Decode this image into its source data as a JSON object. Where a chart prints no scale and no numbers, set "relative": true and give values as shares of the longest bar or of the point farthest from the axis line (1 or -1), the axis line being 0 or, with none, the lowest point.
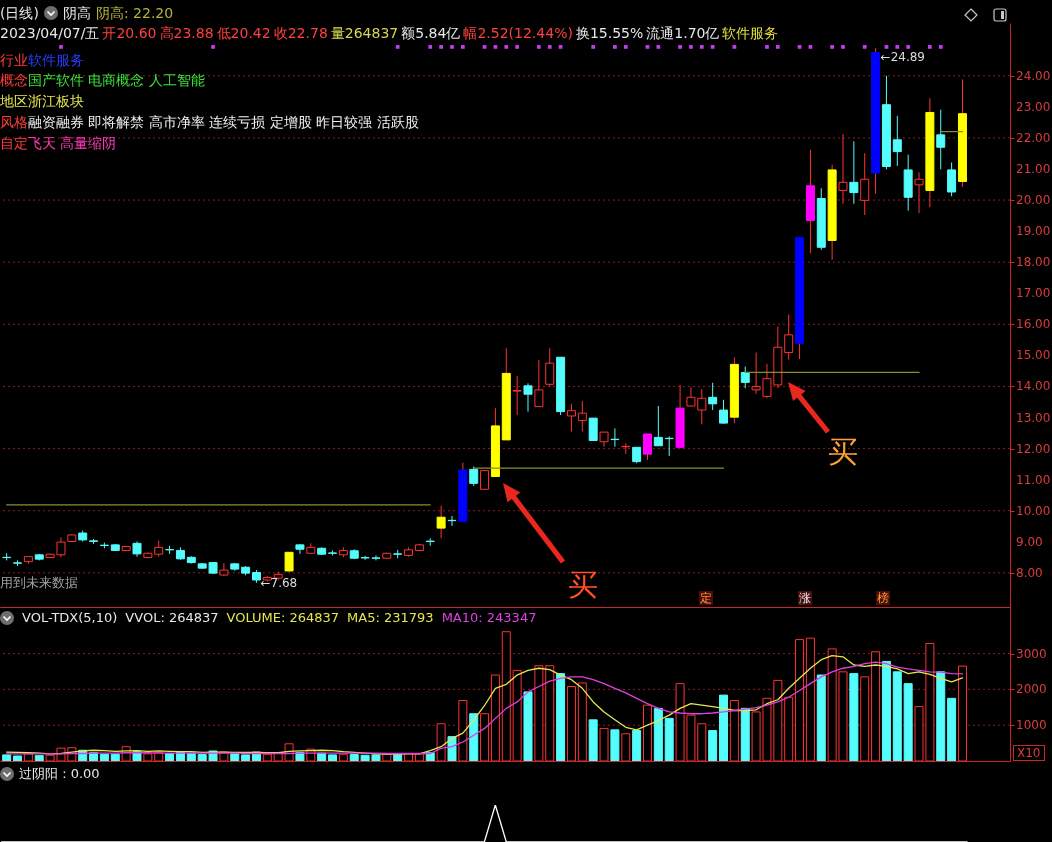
{
  "chart_data": [
    {
      "type": "candlestick",
      "title": "(日线)",
      "categories": [
        null,
        null,
        null,
        null,
        null,
        null,
        null,
        null,
        null,
        null,
        null,
        null,
        null,
        null,
        null,
        null,
        null,
        null,
        null,
        null,
        null,
        null,
        null,
        null,
        null,
        null,
        null,
        null,
        null,
        null,
        null,
        null,
        null,
        null,
        null,
        null,
        null,
        null,
        null,
        null,
        null,
        null,
        null,
        null,
        null,
        null,
        null,
        null,
        null,
        null,
        null,
        null,
        null,
        null,
        null,
        null,
        null,
        null,
        null,
        null,
        null,
        null,
        null,
        null,
        null,
        null,
        null,
        null,
        null,
        null,
        null,
        null,
        null,
        null,
        null,
        null,
        null,
        null,
        null,
        null,
        null,
        null,
        null,
        null,
        null,
        null,
        null,
        null,
        null
      ],
      "ohlc": [
        [
          8.5,
          8.63,
          8.4,
          8.49
        ],
        [
          8.32,
          8.4,
          8.22,
          8.31
        ],
        [
          8.36,
          8.52,
          8.29,
          8.52
        ],
        [
          8.58,
          8.61,
          8.4,
          8.44
        ],
        [
          8.49,
          8.62,
          8.47,
          8.6
        ],
        [
          8.58,
          9.14,
          8.5,
          8.99
        ],
        [
          9.01,
          9.24,
          9.0,
          9.22
        ],
        [
          9.28,
          9.36,
          9.01,
          9.06
        ],
        [
          9.03,
          9.09,
          8.93,
          9.01
        ],
        [
          8.89,
          8.97,
          8.79,
          8.88
        ],
        [
          8.9,
          8.93,
          8.7,
          8.72
        ],
        [
          8.72,
          8.87,
          8.7,
          8.85
        ],
        [
          8.95,
          9.01,
          8.52,
          8.61
        ],
        [
          8.49,
          8.65,
          8.47,
          8.63
        ],
        [
          8.6,
          9.04,
          8.52,
          8.82
        ],
        [
          8.75,
          8.87,
          8.61,
          8.74
        ],
        [
          8.72,
          8.82,
          8.42,
          8.45
        ],
        [
          8.5,
          8.53,
          8.3,
          8.33
        ],
        [
          8.29,
          8.31,
          8.13,
          8.15
        ],
        [
          8.33,
          8.35,
          7.96,
          7.99
        ],
        [
          7.93,
          8.31,
          7.9,
          8.09
        ],
        [
          8.29,
          8.31,
          8.07,
          8.12
        ],
        [
          8.18,
          8.22,
          7.92,
          7.99
        ],
        [
          8.01,
          8.09,
          7.68,
          7.77
        ],
        [
          7.77,
          7.9,
          7.72,
          7.85
        ],
        [
          7.83,
          8.04,
          7.77,
          7.95
        ],
        [
          8.06,
          8.66,
          8.04,
          8.66
        ],
        [
          8.9,
          8.92,
          8.61,
          8.76
        ],
        [
          8.63,
          8.95,
          8.62,
          8.82
        ],
        [
          8.79,
          8.82,
          8.57,
          8.6
        ],
        [
          8.64,
          8.72,
          8.56,
          8.63
        ],
        [
          8.58,
          8.82,
          8.5,
          8.72
        ],
        [
          8.71,
          8.76,
          8.44,
          8.47
        ],
        [
          8.49,
          8.55,
          8.42,
          8.48
        ],
        [
          8.48,
          8.56,
          8.4,
          8.47
        ],
        [
          8.47,
          8.65,
          8.45,
          8.63
        ],
        [
          8.61,
          8.74,
          8.47,
          8.6
        ],
        [
          8.56,
          8.82,
          8.52,
          8.74
        ],
        [
          8.72,
          8.93,
          8.7,
          8.9
        ],
        [
          9.02,
          9.11,
          8.87,
          9.01
        ],
        [
          9.44,
          10.16,
          9.11,
          9.79
        ],
        [
          9.69,
          9.83,
          9.51,
          9.68
        ],
        [
          9.65,
          11.55,
          9.65,
          11.31
        ],
        [
          11.33,
          11.42,
          10.8,
          10.88
        ],
        [
          10.69,
          11.3,
          10.69,
          11.29
        ],
        [
          11.1,
          13.3,
          11.1,
          12.73
        ],
        [
          12.28,
          15.23,
          12.28,
          14.42
        ],
        [
          13.85,
          14.34,
          13.08,
          13.87
        ],
        [
          14.02,
          14.1,
          13.19,
          13.75
        ],
        [
          13.35,
          14.85,
          13.35,
          13.89
        ],
        [
          14.07,
          15.23,
          13.99,
          14.75
        ],
        [
          14.94,
          14.94,
          13.08,
          13.19
        ],
        [
          13.05,
          13.44,
          12.55,
          13.22
        ],
        [
          12.9,
          13.53,
          12.55,
          13.14
        ],
        [
          12.98,
          12.98,
          12.26,
          12.26
        ],
        [
          12.22,
          12.53,
          12.06,
          12.53
        ],
        [
          12.3,
          12.65,
          12.06,
          12.29
        ],
        [
          12.06,
          12.17,
          11.83,
          12.07
        ],
        [
          12.04,
          12.04,
          11.53,
          11.58
        ],
        [
          11.82,
          12.47,
          11.63,
          12.47
        ],
        [
          12.36,
          13.37,
          12.09,
          12.09
        ],
        [
          12.33,
          12.39,
          11.76,
          12.32
        ],
        [
          12.04,
          14.05,
          12.04,
          13.3
        ],
        [
          13.37,
          13.97,
          13.37,
          13.65
        ],
        [
          13.24,
          13.91,
          12.78,
          13.62
        ],
        [
          13.65,
          14.12,
          13.24,
          13.44
        ],
        [
          13.24,
          13.57,
          12.8,
          12.82
        ],
        [
          13.01,
          14.94,
          12.82,
          14.71
        ],
        [
          14.45,
          14.64,
          13.94,
          14.13
        ],
        [
          13.89,
          15.09,
          13.76,
          14.0
        ],
        [
          13.68,
          14.73,
          13.62,
          14.25
        ],
        [
          14.05,
          15.93,
          13.94,
          15.26
        ],
        [
          15.09,
          16.31,
          14.86,
          15.66
        ],
        [
          15.39,
          18.79,
          14.88,
          18.79
        ],
        [
          19.34,
          21.62,
          18.29,
          20.46
        ],
        [
          20.05,
          20.38,
          18.4,
          18.48
        ],
        [
          18.7,
          21.14,
          18.08,
          20.97
        ],
        [
          20.31,
          22.13,
          19.88,
          20.57
        ],
        [
          20.57,
          21.89,
          19.88,
          20.24
        ],
        [
          19.99,
          21.51,
          19.52,
          20.67
        ],
        [
          20.87,
          24.89,
          20.2,
          24.75
        ],
        [
          23.07,
          24.0,
          20.99,
          21.08
        ],
        [
          21.94,
          22.71,
          21.1,
          21.56
        ],
        [
          20.97,
          21.46,
          19.66,
          20.09
        ],
        [
          20.49,
          20.89,
          19.58,
          20.67
        ],
        [
          20.31,
          23.28,
          19.77,
          22.82
        ],
        [
          22.1,
          22.91,
          20.99,
          21.7
        ],
        [
          20.97,
          21.21,
          20.12,
          20.26
        ],
        [
          20.6,
          23.88,
          20.42,
          22.78
        ]
      ],
      "colors": [
        "#54fcfc",
        "#54fcfc",
        "#ff3232",
        "#54fcfc",
        "#ff3232",
        "#ff3232",
        "#ff3232",
        "#54fcfc",
        "#54fcfc",
        "#54fcfc",
        "#54fcfc",
        "#ff3232",
        "#54fcfc",
        "#ff3232",
        "#ff3232",
        "#54fcfc",
        "#54fcfc",
        "#54fcfc",
        "#54fcfc",
        "#54fcfc",
        "#ff3232",
        "#54fcfc",
        "#54fcfc",
        "#54fcfc",
        "#ff3232",
        "#ff3232",
        "#ffff00",
        "#54fcfc",
        "#ff3232",
        "#54fcfc",
        "#54fcfc",
        "#ff3232",
        "#54fcfc",
        "#54fcfc",
        "#54fcfc",
        "#ff3232",
        "#54fcfc",
        "#ff3232",
        "#ff3232",
        "#54fcfc",
        "#ffff00",
        "#54fcfc",
        "#0000ff",
        "#54fcfc",
        "#ff3232",
        "#ffff00",
        "#ffff00",
        "#ff3232",
        "#54fcfc",
        "#ff3232",
        "#ff3232",
        "#54fcfc",
        "#ff3232",
        "#ff3232",
        "#54fcfc",
        "#ff3232",
        "#54fcfc",
        "#ff3232",
        "#54fcfc",
        "#ff00ff",
        "#54fcfc",
        "#54fcfc",
        "#ff00ff",
        "#ff3232",
        "#ff3232",
        "#54fcfc",
        "#54fcfc",
        "#ffff00",
        "#54fcfc",
        "#ff3232",
        "#ff3232",
        "#ff3232",
        "#ff3232",
        "#0000ff",
        "#ff00ff",
        "#54fcfc",
        "#ffff00",
        "#ff3232",
        "#54fcfc",
        "#ff3232",
        "#0000ff",
        "#54fcfc",
        "#54fcfc",
        "#54fcfc",
        "#ff3232",
        "#ffff00",
        "#54fcfc",
        "#54fcfc",
        "#ffff00"
      ],
      "series": [
        {
          "type": "line",
          "color": "#8c8c2c",
          "values": [
            10.19,
            10.19,
            10.19,
            10.19,
            10.19,
            10.19,
            10.19,
            10.19,
            10.19,
            10.19,
            10.19,
            10.19,
            10.19,
            10.19,
            10.19,
            10.19,
            10.19,
            10.19,
            10.19,
            10.19,
            10.19,
            10.19,
            10.19,
            10.19,
            10.19,
            10.19,
            10.19,
            10.19,
            10.19,
            10.19,
            10.19,
            10.19,
            10.19,
            10.19,
            10.19,
            10.19,
            10.19,
            10.19,
            10.19,
            10.19,
            null,
            null,
            null,
            11.37,
            11.37,
            11.37,
            11.37,
            11.37,
            11.37,
            11.37,
            11.37,
            11.37,
            11.37,
            11.37,
            11.37,
            11.37,
            11.37,
            11.37,
            11.37,
            11.37,
            11.37,
            11.37,
            11.37,
            11.37,
            11.37,
            11.37,
            11.37,
            null,
            14.45,
            14.45,
            14.45,
            14.45,
            14.45,
            14.45,
            14.45,
            14.45,
            14.45,
            14.45,
            14.45,
            14.45,
            14.45,
            14.45,
            14.45,
            14.45,
            14.45,
            null,
            22.2,
            22.2,
            22.2
          ]
        },
        {
          "type": "scatter",
          "color": "#c43cf0",
          "marker": "square",
          "values": [
            null,
            null,
            null,
            null,
            null,
            24.93,
            null,
            null,
            null,
            null,
            null,
            null,
            null,
            null,
            null,
            null,
            null,
            null,
            null,
            24.93,
            null,
            null,
            null,
            null,
            null,
            null,
            null,
            null,
            null,
            null,
            null,
            null,
            null,
            null,
            null,
            null,
            24.93,
            null,
            null,
            24.93,
            24.93,
            24.93,
            24.93,
            null,
            24.93,
            24.93,
            24.93,
            24.93,
            null,
            24.93,
            24.93,
            24.93,
            null,
            null,
            24.93,
            null,
            24.93,
            24.93,
            null,
            24.93,
            24.93,
            null,
            24.93,
            24.93,
            24.93,
            24.93,
            null,
            24.93,
            null,
            null,
            24.93,
            24.93,
            null,
            24.93,
            24.93,
            null,
            24.93,
            24.93,
            null,
            24.93,
            null,
            24.93,
            24.93,
            24.93,
            null,
            24.93,
            24.93,
            null,
            null
          ]
        }
      ],
      "ylim": [
        6.9,
        25.7
      ],
      "yticks": [
        {
          "value": 8,
          "label": "8.00"
        },
        {
          "value": 9,
          "label": "9.00"
        },
        {
          "value": 10,
          "label": "10.00"
        },
        {
          "value": 11,
          "label": "11.00"
        },
        {
          "value": 12,
          "label": "12.00"
        },
        {
          "value": 13,
          "label": "13.00"
        },
        {
          "value": 14,
          "label": "14.00"
        },
        {
          "value": 15,
          "label": "15.00"
        },
        {
          "value": 16,
          "label": "16.00"
        },
        {
          "value": 17,
          "label": "17.00"
        },
        {
          "value": 18,
          "label": "18.00"
        },
        {
          "value": 19,
          "label": "19.00"
        },
        {
          "value": 20,
          "label": "20.00"
        },
        {
          "value": 21,
          "label": "21.00"
        },
        {
          "value": 22,
          "label": "22.00"
        },
        {
          "value": 23,
          "label": "23.00"
        },
        {
          "value": 24,
          "label": "24.00"
        }
      ],
      "grid": "y",
      "annotations": [
        "阴高",
        "阴高: 22.20",
        "2023/04/07/五",
        "开20.60",
        "高23.88",
        "低20.42",
        "收22.78",
        "量264837",
        "额5.84亿",
        "幅2.52(12.44%)",
        "换15.55%",
        "流通1.70亿",
        "软件服务",
        "行业",
        "软件服务",
        "概念",
        "国产软件 电商概念 人工智能",
        "地区浙江板块",
        "风格",
        "融资融券 即将解禁 高市净率 连续亏损 定增股 昨日较强 活跃股",
        "自定",
        "飞天 高量缩阴",
        {
          "text": "←24.89",
          "y": 24.89
        },
        {
          "text": "←7.68",
          "y": 7.68
        },
        "买",
        "买",
        "用到未来数据",
        "定",
        "涨",
        "榜"
      ]
    },
    {
      "type": "bar",
      "title": "VOL-TDX(5,10)",
      "categories": [
        null,
        null,
        null,
        null,
        null,
        null,
        null,
        null,
        null,
        null,
        null,
        null,
        null,
        null,
        null,
        null,
        null,
        null,
        null,
        null,
        null,
        null,
        null,
        null,
        null,
        null,
        null,
        null,
        null,
        null,
        null,
        null,
        null,
        null,
        null,
        null,
        null,
        null,
        null,
        null,
        null,
        null,
        null,
        null,
        null,
        null,
        null,
        null,
        null,
        null,
        null,
        null,
        null,
        null,
        null,
        null,
        null,
        null,
        null,
        null,
        null,
        null,
        null,
        null,
        null,
        null,
        null,
        null,
        null,
        null,
        null,
        null,
        null,
        null,
        null,
        null,
        null,
        null,
        null,
        null,
        null,
        null,
        null,
        null,
        null,
        null,
        null,
        null,
        null
      ],
      "series": [
        {
          "colors": [
            "#54fcfc",
            "#54fcfc",
            "#ff3232",
            "#54fcfc",
            "#ff3232",
            "#ff3232",
            "#ff3232",
            "#54fcfc",
            "#54fcfc",
            "#54fcfc",
            "#54fcfc",
            "#ff3232",
            "#54fcfc",
            "#ff3232",
            "#ff3232",
            "#54fcfc",
            "#54fcfc",
            "#54fcfc",
            "#54fcfc",
            "#54fcfc",
            "#ff3232",
            "#54fcfc",
            "#54fcfc",
            "#54fcfc",
            "#ff3232",
            "#ff3232",
            "#ff3232",
            "#54fcfc",
            "#ff3232",
            "#54fcfc",
            "#54fcfc",
            "#ff3232",
            "#54fcfc",
            "#54fcfc",
            "#54fcfc",
            "#ff3232",
            "#54fcfc",
            "#ff3232",
            "#ff3232",
            "#54fcfc",
            "#ff3232",
            "#54fcfc",
            "#ff3232",
            "#54fcfc",
            "#ff3232",
            "#ff3232",
            "#ff3232",
            "#ff3232",
            "#54fcfc",
            "#ff3232",
            "#ff3232",
            "#54fcfc",
            "#ff3232",
            "#ff3232",
            "#54fcfc",
            "#ff3232",
            "#54fcfc",
            "#ff3232",
            "#54fcfc",
            "#ff3232",
            "#54fcfc",
            "#54fcfc",
            "#ff3232",
            "#ff3232",
            "#ff3232",
            "#54fcfc",
            "#54fcfc",
            "#ff3232",
            "#54fcfc",
            "#ff3232",
            "#ff3232",
            "#ff3232",
            "#ff3232",
            "#ff3232",
            "#ff3232",
            "#54fcfc",
            "#ff3232",
            "#ff3232",
            "#54fcfc",
            "#ff3232",
            "#ff3232",
            "#54fcfc",
            "#54fcfc",
            "#54fcfc",
            "#ff3232",
            "#ff3232",
            "#54fcfc",
            "#54fcfc",
            "#ff3232"
          ],
          "values": [
            170,
            140,
            200,
            150,
            160,
            360,
            370,
            300,
            230,
            190,
            190,
            400,
            260,
            200,
            240,
            210,
            250,
            220,
            180,
            280,
            250,
            200,
            170,
            250,
            190,
            210,
            480,
            240,
            330,
            220,
            170,
            190,
            180,
            160,
            170,
            190,
            180,
            210,
            200,
            230,
            1040,
            680,
            1690,
            1320,
            1320,
            2400,
            3610,
            2530,
            1930,
            2660,
            2660,
            2440,
            2080,
            2180,
            1150,
            910,
            870,
            760,
            850,
            1560,
            1470,
            1190,
            2160,
            1280,
            1040,
            850,
            1840,
            1690,
            1470,
            1370,
            1750,
            2250,
            1780,
            3390,
            3430,
            2400,
            3130,
            2490,
            2440,
            2350,
            3050,
            2780,
            2490,
            2160,
            1520,
            3280,
            2490,
            1750,
            2650
          ]
        },
        {
          "type": "line",
          "color": "#e6e650",
          "values": [
            250,
            240,
            230,
            220,
            200,
            210,
            250,
            280,
            300,
            290,
            270,
            280,
            290,
            270,
            280,
            270,
            260,
            260,
            240,
            250,
            250,
            240,
            240,
            240,
            230,
            230,
            270,
            280,
            290,
            300,
            290,
            260,
            240,
            220,
            200,
            190,
            190,
            200,
            200,
            290,
            400,
            630,
            780,
            1140,
            1550,
            2030,
            2140,
            2400,
            2530,
            2590,
            2550,
            2400,
            2270,
            2030,
            1650,
            1370,
            1150,
            940,
            870,
            1000,
            1130,
            1280,
            1470,
            1600,
            1560,
            1520,
            1470,
            1410,
            1410,
            1430,
            1600,
            1710,
            2030,
            2310,
            2590,
            2830,
            2940,
            2910,
            2680,
            2640,
            2680,
            2640,
            2570,
            2440,
            2490,
            2420,
            2310,
            2210,
            2320
          ]
        },
        {
          "type": "line",
          "color": "#e040e0",
          "values": [
            200,
            200,
            200,
            200,
            200,
            200,
            210,
            210,
            220,
            220,
            220,
            230,
            230,
            230,
            220,
            220,
            220,
            220,
            220,
            220,
            220,
            220,
            210,
            210,
            210,
            210,
            210,
            220,
            220,
            220,
            220,
            220,
            220,
            220,
            220,
            210,
            210,
            210,
            210,
            210,
            350,
            400,
            530,
            720,
            910,
            1190,
            1470,
            1650,
            1930,
            2080,
            2230,
            2310,
            2350,
            2350,
            2270,
            2160,
            2030,
            1900,
            1750,
            1600,
            1470,
            1370,
            1340,
            1320,
            1320,
            1340,
            1370,
            1410,
            1450,
            1490,
            1560,
            1650,
            1780,
            1970,
            2160,
            2350,
            2490,
            2590,
            2640,
            2720,
            2760,
            2720,
            2620,
            2570,
            2530,
            2490,
            2480,
            2440,
            2430
          ]
        }
      ],
      "ylim": [
        0,
        4300
      ],
      "yticks": [
        1000,
        2000,
        3000
      ],
      "grid": "y",
      "annotations": [
        "VVOL: 264837",
        "VOLUME: 264837",
        "MA5: 231793",
        "MA10: 243347",
        "X10"
      ]
    },
    {
      "type": "line",
      "title": "过阴阳 : 0.00",
      "relative": true,
      "color": "#ffffff",
      "categories": [
        null,
        null,
        null,
        null,
        null,
        null,
        null,
        null,
        null,
        null,
        null,
        null,
        null,
        null,
        null,
        null,
        null,
        null,
        null,
        null,
        null,
        null,
        null,
        null,
        null,
        null,
        null,
        null,
        null,
        null,
        null,
        null,
        null,
        null,
        null,
        null,
        null,
        null,
        null,
        null,
        null,
        null,
        null,
        null,
        null,
        null,
        null,
        null,
        null,
        null,
        null,
        null,
        null,
        null,
        null,
        null,
        null,
        null,
        null,
        null,
        null,
        null,
        null,
        null,
        null,
        null,
        null,
        null,
        null,
        null,
        null,
        null,
        null,
        null,
        null,
        null,
        null,
        null,
        null,
        null,
        null,
        null,
        null,
        null,
        null,
        null,
        null,
        null,
        null
      ],
      "values": [
        0,
        0,
        0,
        0,
        0,
        0,
        0,
        0,
        0,
        0,
        0,
        0,
        0,
        0,
        0,
        0,
        0,
        0,
        0,
        0,
        0,
        0,
        0,
        0,
        0,
        0,
        0,
        0,
        0,
        0,
        0,
        0,
        0,
        0,
        0,
        0,
        0,
        0,
        0,
        0,
        0,
        0,
        0,
        0,
        0,
        1,
        0,
        0,
        0,
        0,
        0,
        0,
        0,
        0,
        0,
        0,
        0,
        0,
        0,
        0,
        0,
        0,
        0,
        0,
        0,
        0,
        0,
        0,
        0,
        0,
        0,
        0,
        0,
        0,
        0,
        0,
        0,
        0,
        0,
        0,
        0,
        0,
        0,
        0,
        0,
        0,
        0,
        0,
        0
      ]
    }
  ]
}
